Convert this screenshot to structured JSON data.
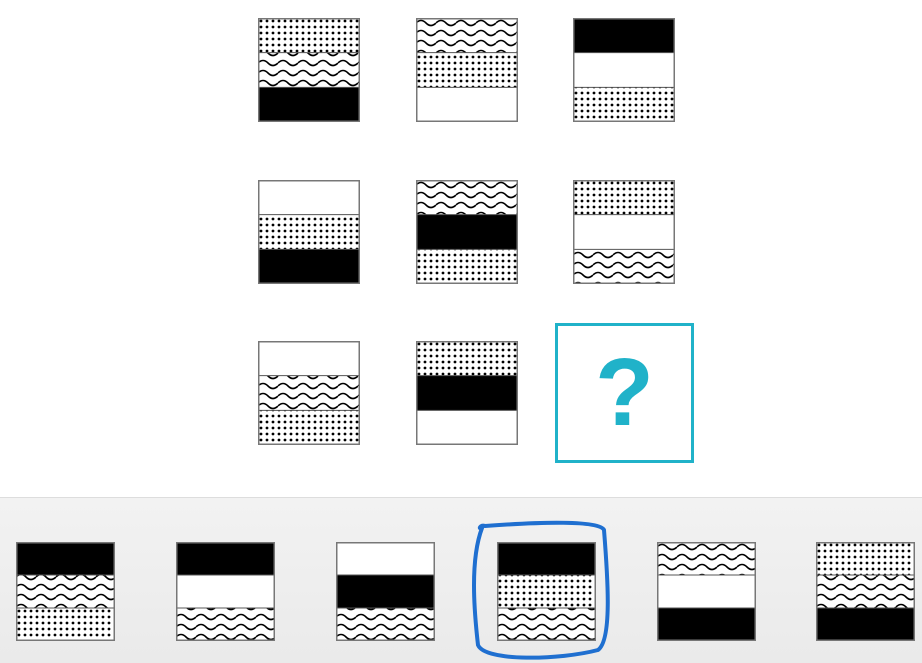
{
  "puzzle": {
    "rows": [
      [
        [
          "dots",
          "wave",
          "black"
        ],
        [
          "wave",
          "dots",
          "white"
        ],
        [
          "black",
          "white",
          "dots"
        ]
      ],
      [
        [
          "white",
          "dots",
          "black"
        ],
        [
          "wave",
          "black",
          "dots"
        ],
        [
          "dots",
          "white",
          "wave"
        ]
      ],
      [
        [
          "white",
          "wave",
          "dots"
        ],
        [
          "dots",
          "black",
          "white"
        ],
        null
      ]
    ],
    "question_mark": "?"
  },
  "options": [
    [
      "black",
      "wave",
      "dots"
    ],
    [
      "black",
      "white",
      "wave"
    ],
    [
      "white",
      "black",
      "wave"
    ],
    [
      "black",
      "dots",
      "wave"
    ],
    [
      "wave",
      "white",
      "black"
    ],
    [
      "dots",
      "wave",
      "black"
    ]
  ],
  "highlighted_option": 3,
  "colors": {
    "accent": "#20b2c9",
    "highlight": "#1f6fd0",
    "black_band": "#000000"
  }
}
